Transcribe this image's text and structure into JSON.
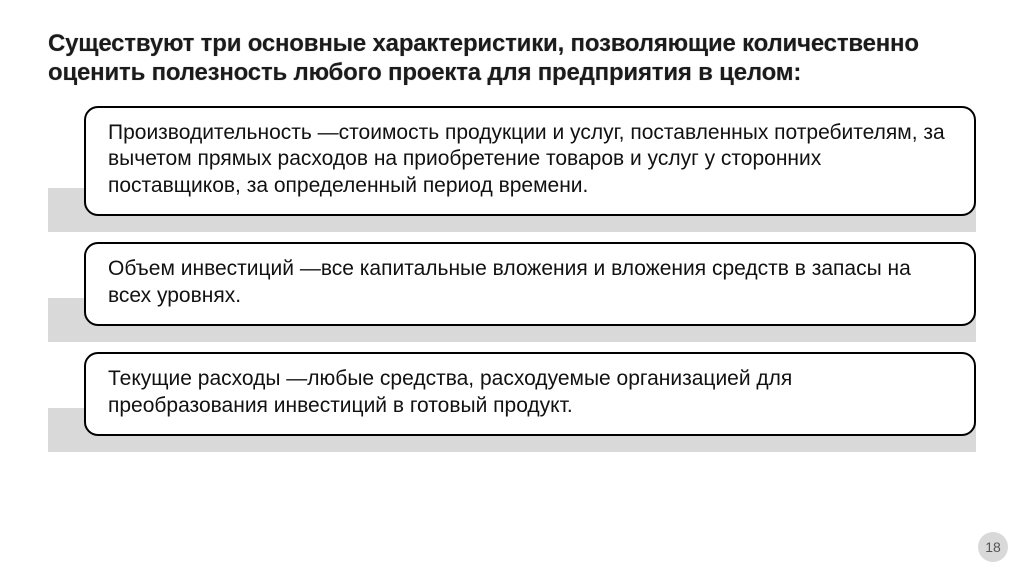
{
  "title": "Существуют три основные характеристики, позволяющие количественно оценить полезность любого проекта для предприятия в целом:",
  "items": [
    {
      "text": "Производительность —стоимость продукции и услуг, поставленных потребителям, за вычетом прямых расходов на приобретение товаров и услуг у сторонних поставщиков, за определенный период времени."
    },
    {
      "text": "Объем инвестиций —все капитальные вложения и вложения средств в запасы на всех уровнях."
    },
    {
      "text": "Текущие расходы —любые средства, расходуемые организацией для преобразования инвестиций в готовый продукт."
    }
  ],
  "pageNumber": "18",
  "colors": {
    "background": "#ffffff",
    "shadowBar": "#d9d9d9",
    "boxBorder": "#000000",
    "titleColor": "#1b1b1b",
    "bodyText": "#111111",
    "badgeBg": "#d9d9d9",
    "badgeText": "#555555"
  },
  "typography": {
    "titleFontSize": 24,
    "titleWeight": 800,
    "bodyFontSize": 21,
    "bodyLineHeight": 1.28,
    "badgeFontSize": 14
  },
  "layout": {
    "slideWidth": 1024,
    "slideHeight": 574,
    "boxRadius": 14,
    "boxBorderWidth": 2,
    "boxLeftInset": 36,
    "shadowBarHeight": 44,
    "itemGap": 26
  }
}
